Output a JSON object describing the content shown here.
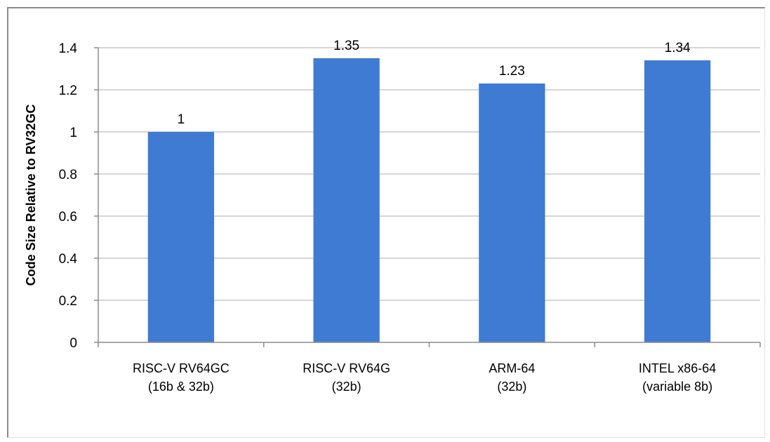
{
  "chart_data": {
    "type": "bar",
    "title": "",
    "xlabel": "",
    "ylabel": "Code Size Relative to RV32GC",
    "categories": [
      [
        "RISC-V RV64GC",
        "(16b & 32b)"
      ],
      [
        "RISC-V RV64G",
        "(32b)"
      ],
      [
        "ARM-64",
        "(32b)"
      ],
      [
        "INTEL x86-64",
        "(variable 8b)"
      ]
    ],
    "values": [
      1,
      1.35,
      1.23,
      1.34
    ],
    "data_labels": [
      "1",
      "1.35",
      "1.23",
      "1.34"
    ],
    "ylim": [
      0,
      1.4
    ],
    "yticks": [
      0,
      0.2,
      0.4,
      0.6,
      0.8,
      1,
      1.2,
      1.4
    ],
    "ytick_labels": [
      "0",
      "0.2",
      "0.4",
      "0.6",
      "0.8",
      "1",
      "1.2",
      "1.4"
    ],
    "grid": true,
    "legend": "none",
    "colors": {
      "bar": "#3f7bd2",
      "grid": "#c8c8c8",
      "axis": "#8c8c8c"
    }
  }
}
